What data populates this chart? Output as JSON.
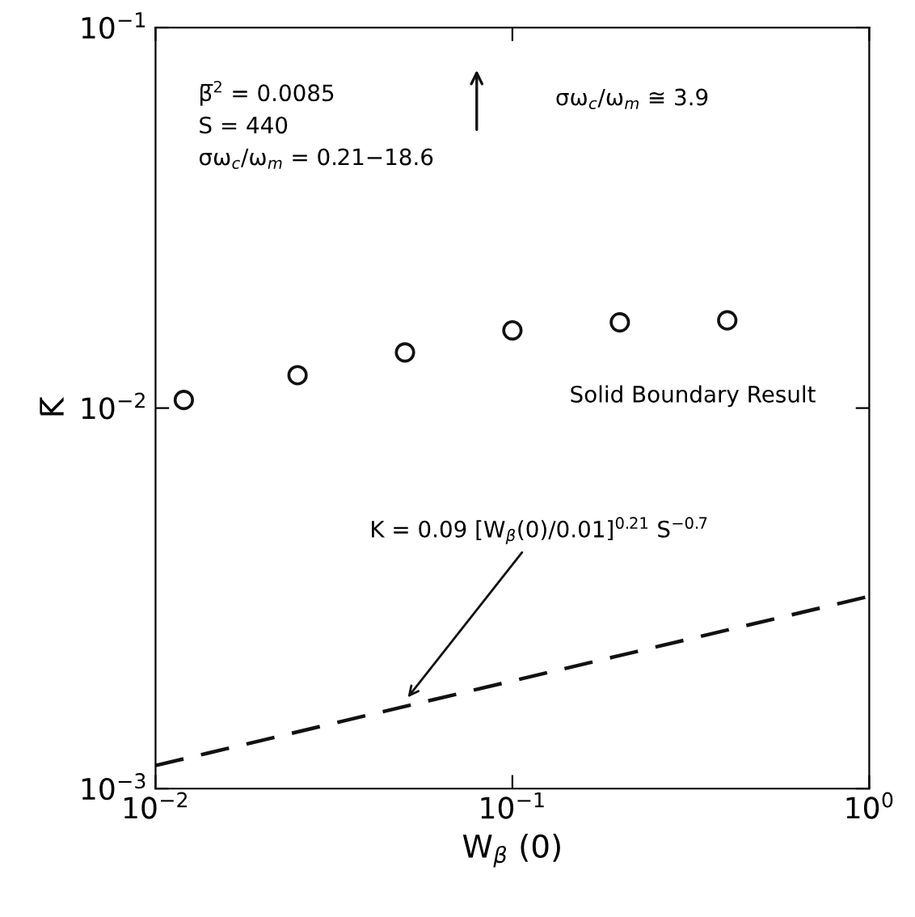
{
  "chart_data": {
    "type": "scatter",
    "xlabel": "W$_{β}$ (0)",
    "ylabel": "K̅",
    "xlim": [
      0.01,
      1
    ],
    "ylim": [
      0.001,
      0.1
    ],
    "log": "xy",
    "grid": false,
    "xticks": [
      {
        "value": 0.01,
        "label": "10$^{−2}$"
      },
      {
        "value": 0.1,
        "label": "10$^{−1}$"
      },
      {
        "value": 1,
        "label": "10$^{0}$"
      }
    ],
    "yticks": [
      {
        "value": 0.001,
        "label": "10$^{−3}$"
      },
      {
        "value": 0.01,
        "label": "10$^{−2}$"
      },
      {
        "value": 0.1,
        "label": "10$^{−1}$"
      }
    ],
    "series": [
      {
        "marker": "circle",
        "color": "#111111",
        "x": [
          0.012,
          0.025,
          0.05,
          0.1,
          0.2,
          0.4
        ],
        "values": [
          0.0105,
          0.0122,
          0.014,
          0.016,
          0.0168,
          0.017
        ]
      },
      {
        "type": "line",
        "line_style": "dashed",
        "color": "#111111",
        "x": [
          0.01,
          1
        ],
        "values": [
          0.00115,
          0.0032
        ]
      }
    ],
    "annotations": [
      "β̅$^{2}$ = 0.0085\nS = 440\nσω$_{c}$/ω$_{m}$ = 0.21−18.6",
      "Solid Boundary Result",
      "σω$_{c}$/ω$_{m}$ ≅ 3.9",
      {
        "text": "K = 0.09 [W$_{β}$(0)/0.01]$^{0.21}$ S$^{−0.7}$",
        "x": 0.05,
        "y": 0.0017
      }
    ]
  }
}
